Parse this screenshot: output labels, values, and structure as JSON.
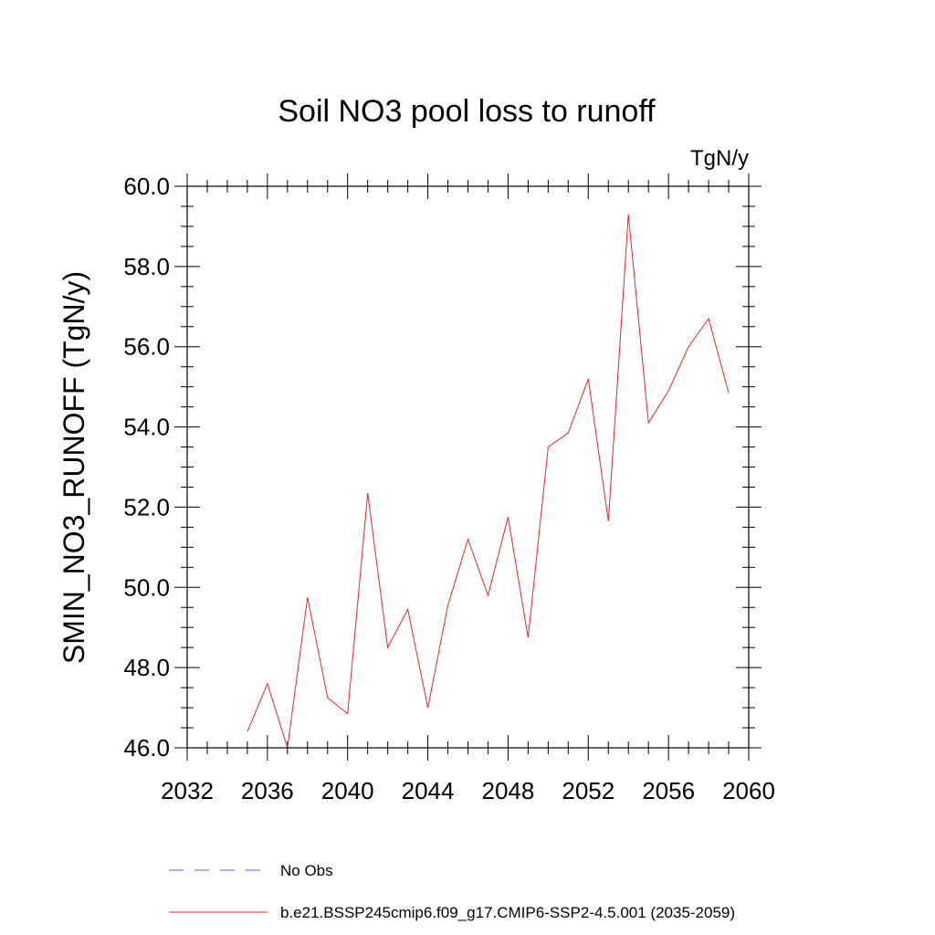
{
  "chart_data": {
    "type": "line",
    "title": "Soil NO3 pool loss to runoff",
    "units": "TgN/y",
    "xlabel": "",
    "ylabel": "SMIN_NO3_RUNOFF  (TgN/y)",
    "xlim": [
      2032,
      2060
    ],
    "ylim": [
      46.0,
      60.0
    ],
    "xticks": [
      2032,
      2036,
      2040,
      2044,
      2048,
      2052,
      2056,
      2060
    ],
    "xminor_step": 1,
    "yticks": [
      46.0,
      48.0,
      50.0,
      52.0,
      54.0,
      56.0,
      58.0,
      60.0
    ],
    "ytick_labels": [
      "46.0",
      "48.0",
      "50.0",
      "52.0",
      "54.0",
      "56.0",
      "58.0",
      "60.0"
    ],
    "yminor_step": 0.5,
    "grid": false,
    "legend_position": "bottom",
    "series": [
      {
        "name": "b.e21.BSSP245cmip6.f09_g17.CMIP6-SSP2-4.5.001 (2035-2059)",
        "color": "#e8262a",
        "dash": "solid",
        "x": [
          2035,
          2036,
          2037,
          2038,
          2039,
          2040,
          2041,
          2042,
          2043,
          2044,
          2045,
          2046,
          2047,
          2048,
          2049,
          2050,
          2051,
          2052,
          2053,
          2054,
          2055,
          2056,
          2057,
          2058,
          2059
        ],
        "y": [
          46.4,
          47.6,
          46.0,
          49.75,
          47.25,
          46.85,
          52.35,
          48.5,
          49.45,
          47.0,
          49.55,
          51.2,
          49.8,
          51.75,
          48.75,
          53.5,
          53.85,
          55.2,
          51.65,
          59.3,
          54.1,
          54.9,
          56.0,
          56.7,
          54.85
        ]
      }
    ],
    "legend": [
      {
        "label": "No Obs",
        "color": "#6a5acd",
        "dash": "dashed"
      },
      {
        "label": "b.e21.BSSP245cmip6.f09_g17.CMIP6-SSP2-4.5.001 (2035-2059)",
        "color": "#e8262a",
        "dash": "solid"
      }
    ]
  }
}
